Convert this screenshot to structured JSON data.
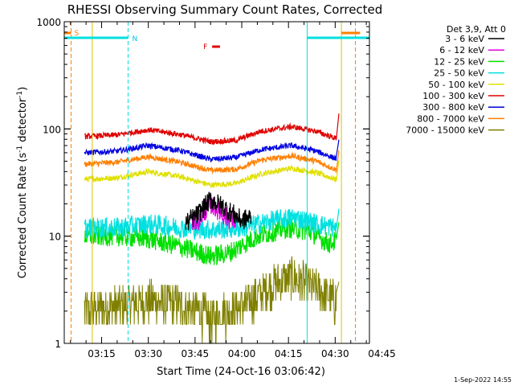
{
  "chart_data": {
    "type": "line",
    "title": "RHESSI Observing Summary Count Rates, Corrected",
    "xlabel": "Start Time (24-Oct-16 03:06:42)",
    "ylabel_main": "Corrected Count Rate (s",
    "ylabel_sup1": "-1",
    "ylabel_mid": " detector",
    "ylabel_sup2": "-1",
    "ylabel_end": ")",
    "y_scale": "log",
    "ylim": [
      1,
      1000
    ],
    "xlim_minutes": [
      3.0,
      101.0
    ],
    "yticks": [
      {
        "value": 1,
        "label": "1"
      },
      {
        "value": 10,
        "label": "10"
      },
      {
        "value": 100,
        "label": "100"
      },
      {
        "value": 1000,
        "label": "1000"
      }
    ],
    "xticks": [
      {
        "minutes": 15,
        "label": "03:15"
      },
      {
        "minutes": 30,
        "label": "03:30"
      },
      {
        "minutes": 45,
        "label": "03:45"
      },
      {
        "minutes": 60,
        "label": "04:00"
      },
      {
        "minutes": 75,
        "label": "04:15"
      },
      {
        "minutes": 90,
        "label": "04:30"
      },
      {
        "minutes": 105,
        "label": "04:45"
      }
    ],
    "legend_header": "Det 3,9, Att 0",
    "legend_position": "right",
    "series": [
      {
        "name": "3 - 6 keV",
        "color": "#000000",
        "key": [
          [
            10,
            11
          ],
          [
            25,
            14
          ],
          [
            40,
            12
          ],
          [
            46,
            16
          ],
          [
            50,
            22
          ],
          [
            55,
            18
          ],
          [
            60,
            14
          ],
          [
            70,
            18
          ],
          [
            78,
            16
          ],
          [
            86,
            12
          ],
          [
            90,
            13
          ]
        ]
      },
      {
        "name": "6 - 12 keV",
        "color": "#e000e0",
        "key": [
          [
            10,
            11
          ],
          [
            25,
            13
          ],
          [
            40,
            12
          ],
          [
            46,
            14
          ],
          [
            50,
            20
          ],
          [
            55,
            15
          ],
          [
            60,
            13
          ],
          [
            70,
            17
          ],
          [
            78,
            15
          ],
          [
            86,
            12
          ],
          [
            90,
            12
          ]
        ]
      },
      {
        "name": "12 - 25 keV",
        "color": "#00e000",
        "key": [
          [
            10,
            10
          ],
          [
            20,
            10
          ],
          [
            30,
            9.5
          ],
          [
            40,
            8
          ],
          [
            50,
            6.5
          ],
          [
            56,
            7
          ],
          [
            65,
            10
          ],
          [
            75,
            12
          ],
          [
            82,
            11
          ],
          [
            88,
            8.5
          ],
          [
            90,
            9
          ]
        ]
      },
      {
        "name": "25 - 50 keV",
        "color": "#00e0e0",
        "key": [
          [
            10,
            12
          ],
          [
            20,
            12
          ],
          [
            30,
            13
          ],
          [
            40,
            12
          ],
          [
            50,
            11.5
          ],
          [
            60,
            12
          ],
          [
            70,
            14
          ],
          [
            77,
            15
          ],
          [
            84,
            13
          ],
          [
            90,
            12
          ]
        ]
      },
      {
        "name": "50 - 100 keV",
        "color": "#e0e000",
        "key": [
          [
            10,
            34
          ],
          [
            20,
            35
          ],
          [
            30,
            40
          ],
          [
            40,
            36
          ],
          [
            50,
            30
          ],
          [
            58,
            31
          ],
          [
            66,
            38
          ],
          [
            76,
            43
          ],
          [
            84,
            39
          ],
          [
            90,
            34
          ]
        ]
      },
      {
        "name": "100 - 300 keV",
        "color": "#e00000",
        "key": [
          [
            10,
            85
          ],
          [
            20,
            88
          ],
          [
            30,
            98
          ],
          [
            40,
            89
          ],
          [
            50,
            76
          ],
          [
            58,
            78
          ],
          [
            66,
            95
          ],
          [
            76,
            105
          ],
          [
            84,
            95
          ],
          [
            90,
            82
          ]
        ]
      },
      {
        "name": "300 - 800 keV",
        "color": "#0000e0",
        "key": [
          [
            10,
            60
          ],
          [
            20,
            62
          ],
          [
            30,
            70
          ],
          [
            40,
            63
          ],
          [
            50,
            52
          ],
          [
            58,
            54
          ],
          [
            66,
            64
          ],
          [
            76,
            70
          ],
          [
            84,
            62
          ],
          [
            90,
            53
          ]
        ]
      },
      {
        "name": "800 - 7000 keV",
        "color": "#ff7f00",
        "key": [
          [
            10,
            47
          ],
          [
            20,
            49
          ],
          [
            30,
            55
          ],
          [
            40,
            49
          ],
          [
            50,
            41
          ],
          [
            58,
            42
          ],
          [
            66,
            51
          ],
          [
            76,
            56
          ],
          [
            84,
            50
          ],
          [
            90,
            42
          ]
        ]
      },
      {
        "name": "7000 - 15000 keV",
        "color": "#808000",
        "key": [
          [
            10,
            2.0
          ],
          [
            20,
            2.2
          ],
          [
            30,
            2.5
          ],
          [
            40,
            2.3
          ],
          [
            50,
            1.7
          ],
          [
            60,
            2.2
          ],
          [
            70,
            3.5
          ],
          [
            76,
            4.2
          ],
          [
            84,
            3.2
          ],
          [
            90,
            2.5
          ]
        ]
      }
    ],
    "annotations": {
      "saa_label": "S",
      "night_label": "N",
      "flare_label": "F",
      "saa_lines_minutes": [
        5.2,
        96.5
      ],
      "night_lines_minutes": [
        23.5,
        81.0,
        101.0
      ],
      "saa_bars_minutes": [
        [
          3.0,
          5.2
        ],
        [
          92.0,
          98.0
        ]
      ],
      "night_bars_minutes": [
        [
          3.0,
          23.5
        ],
        [
          81.0,
          101.0
        ]
      ],
      "flare_bar_minutes": [
        [
          50.5,
          53.0
        ]
      ]
    },
    "grid": false
  },
  "footer": {
    "date_stamp": "1-Sep-2022 14:55"
  }
}
